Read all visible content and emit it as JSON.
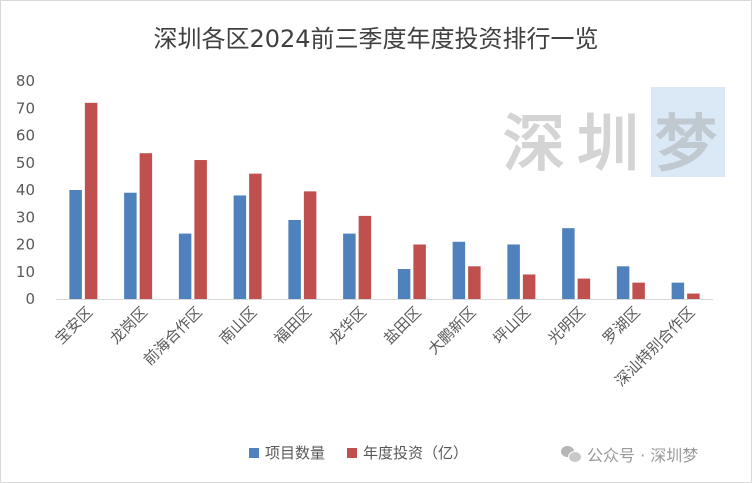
{
  "chart_data": {
    "type": "bar",
    "title": "深圳各区2024前三季度年度投资排行一览",
    "categories": [
      "宝安区",
      "龙岗区",
      "前海合作区",
      "南山区",
      "福田区",
      "龙华区",
      "盐田区",
      "大鹏新区",
      "坪山区",
      "光明区",
      "罗湖区",
      "深汕特别合作区"
    ],
    "series": [
      {
        "name": "项目数量",
        "color": "#4f81bd",
        "values": [
          40,
          39,
          24,
          38,
          29,
          24,
          11,
          21,
          20,
          26,
          12,
          6
        ]
      },
      {
        "name": "年度投资（亿）",
        "color": "#c0504d",
        "values": [
          72,
          53.5,
          51,
          46,
          39.5,
          30.5,
          20,
          12,
          9,
          7.5,
          6,
          2
        ]
      }
    ],
    "y_ticks": [
      "0",
      "10",
      "20",
      "30",
      "40",
      "50",
      "60",
      "70",
      "80"
    ],
    "ylim": [
      0,
      80
    ],
    "grid": false,
    "legend_position": "bottom"
  },
  "watermark": {
    "chars": [
      "深",
      "圳",
      "梦"
    ]
  },
  "footer": {
    "brand": "公众号 · 深圳梦",
    "icon": "wechat-icon"
  }
}
